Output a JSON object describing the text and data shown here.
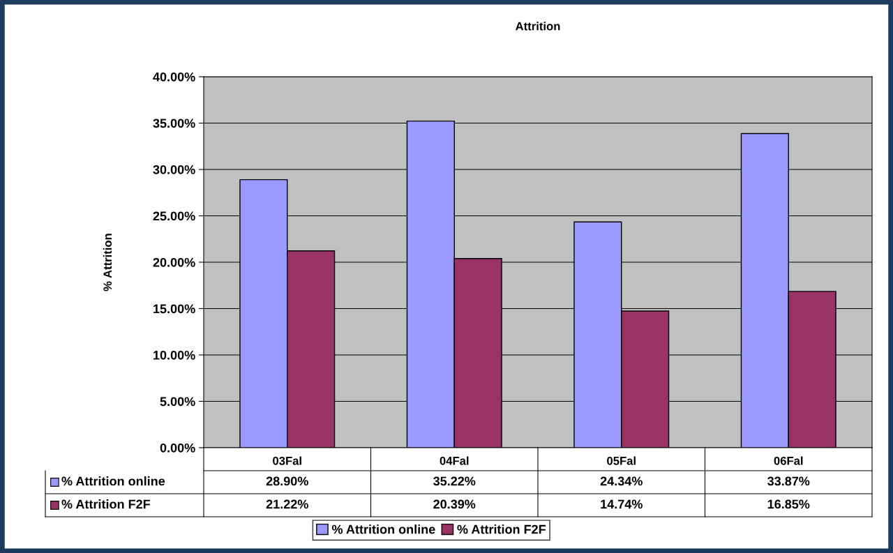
{
  "chart_data": {
    "type": "bar",
    "title": "Attrition",
    "ylabel": "% Attrition",
    "categories": [
      "03Fal",
      "04Fal",
      "05Fal",
      "06Fal"
    ],
    "series": [
      {
        "name": "% Attrition online",
        "color": "#9999ff",
        "values": [
          28.9,
          35.22,
          24.34,
          33.87
        ],
        "value_labels": [
          "28.90%",
          "35.22%",
          "24.34%",
          "33.87%"
        ]
      },
      {
        "name": "% Attrition F2F",
        "color": "#993366",
        "values": [
          21.22,
          20.39,
          14.74,
          16.85
        ],
        "value_labels": [
          "21.22%",
          "20.39%",
          "14.74%",
          "16.85%"
        ]
      }
    ],
    "ylim": [
      0,
      40
    ],
    "yticks": [
      {
        "value": 0,
        "label": "0.00%"
      },
      {
        "value": 5,
        "label": "5.00%"
      },
      {
        "value": 10,
        "label": "10.00%"
      },
      {
        "value": 15,
        "label": "15.00%"
      },
      {
        "value": 20,
        "label": "20.00%"
      },
      {
        "value": 25,
        "label": "25.00%"
      },
      {
        "value": 30,
        "label": "30.00%"
      },
      {
        "value": 35,
        "label": "35.00%"
      },
      {
        "value": 40,
        "label": "40.00%"
      }
    ],
    "grid": "y",
    "legend": "bottom"
  }
}
